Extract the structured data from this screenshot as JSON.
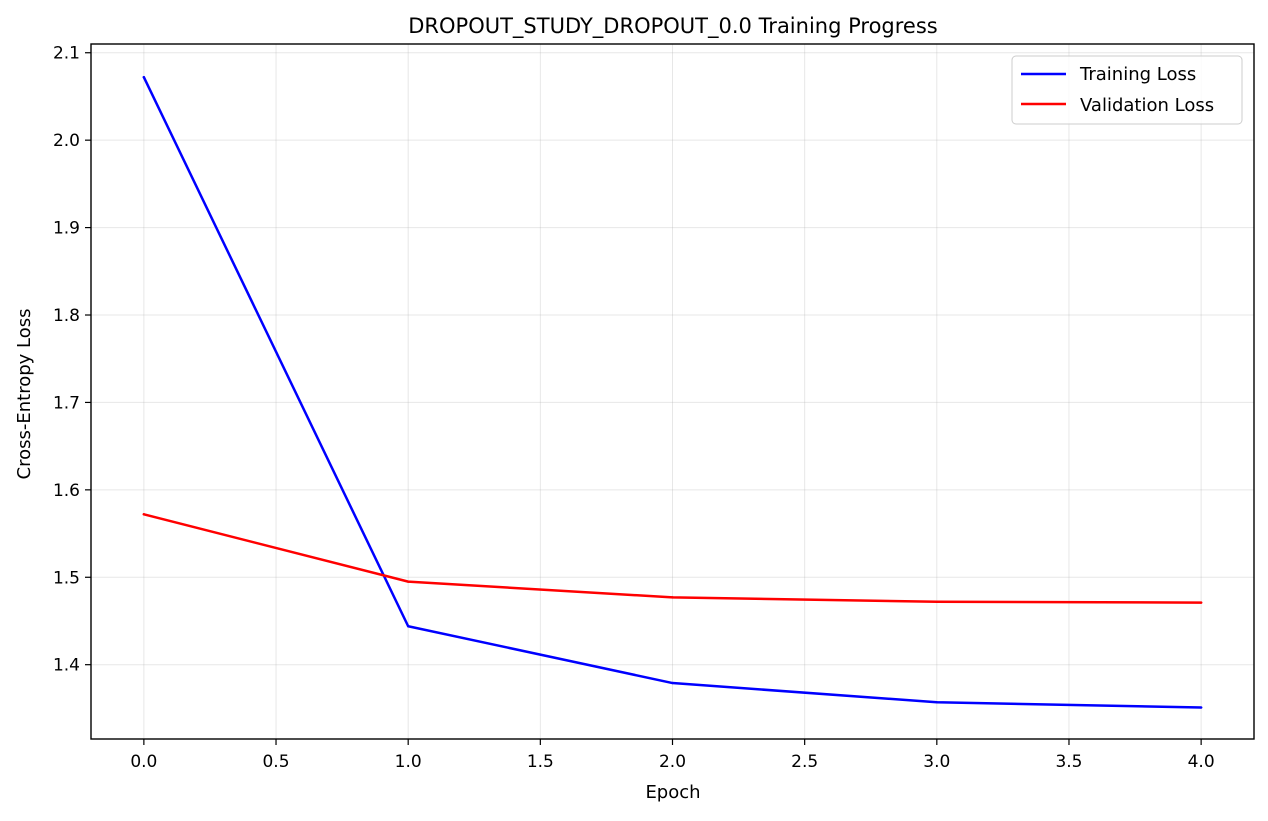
{
  "chart_data": {
    "type": "line",
    "title": "DROPOUT_STUDY_DROPOUT_0.0 Training Progress",
    "xlabel": "Epoch",
    "ylabel": "Cross-Entropy Loss",
    "xlim": [
      -0.2,
      4.2
    ],
    "ylim": [
      1.315,
      2.11
    ],
    "xticks": [
      0.0,
      0.5,
      1.0,
      1.5,
      2.0,
      2.5,
      3.0,
      3.5,
      4.0
    ],
    "xtick_labels": [
      "0.0",
      "0.5",
      "1.0",
      "1.5",
      "2.0",
      "2.5",
      "3.0",
      "3.5",
      "4.0"
    ],
    "yticks": [
      1.4,
      1.5,
      1.6,
      1.7,
      1.8,
      1.9,
      2.0,
      2.1
    ],
    "ytick_labels": [
      "1.4",
      "1.5",
      "1.6",
      "1.7",
      "1.8",
      "1.9",
      "2.0",
      "2.1"
    ],
    "grid": true,
    "legend_position": "upper right",
    "x": [
      0,
      1,
      2,
      3,
      4
    ],
    "series": [
      {
        "name": "Training Loss",
        "color": "#0000ff",
        "values": [
          2.072,
          1.444,
          1.379,
          1.357,
          1.351
        ]
      },
      {
        "name": "Validation Loss",
        "color": "#ff0000",
        "values": [
          1.572,
          1.495,
          1.477,
          1.472,
          1.471
        ]
      }
    ]
  }
}
